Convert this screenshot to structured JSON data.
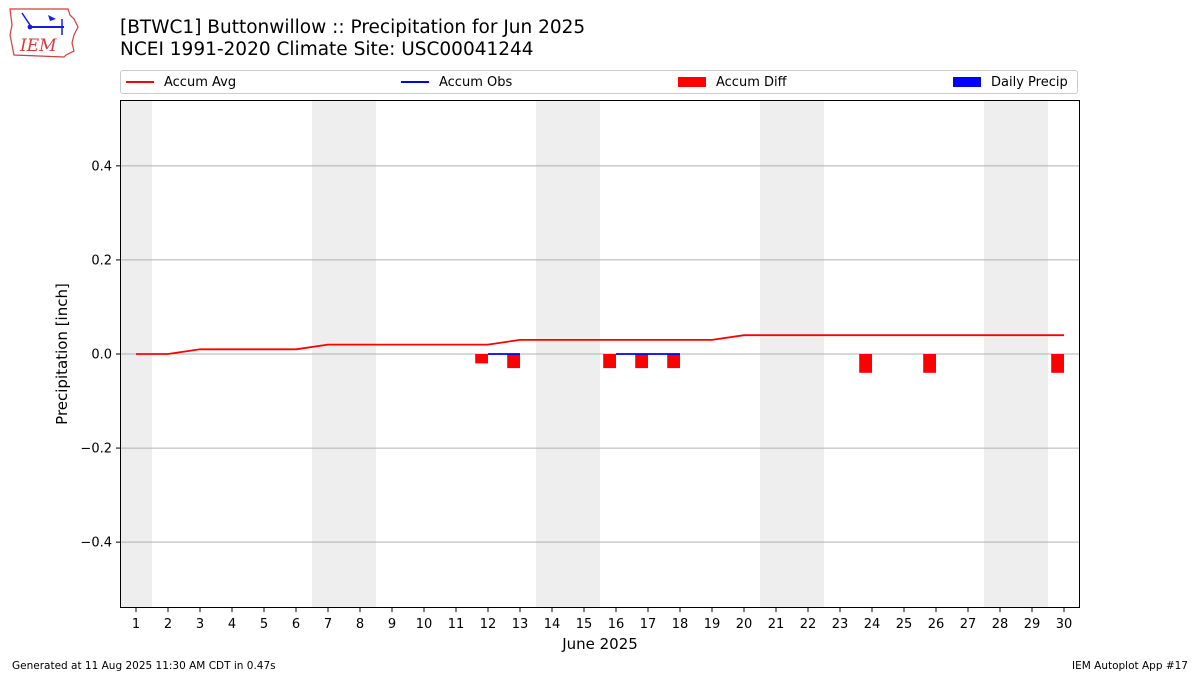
{
  "header": {
    "title_line1": "[BTWC1] Buttonwillow :: Precipitation for Jun 2025",
    "title_line2": "NCEI 1991-2020 Climate Site: USC00041244",
    "logo_text": "IEM"
  },
  "footer": {
    "generated": "Generated at 11 Aug 2025 11:30 AM CDT in 0.47s",
    "app": "IEM Autoplot App #17"
  },
  "chart_data": {
    "type": "line",
    "xlabel": "June 2025",
    "ylabel": "Precipitation [inch]",
    "xlim": [
      0.5,
      30.5
    ],
    "ylim": [
      -0.54,
      0.54
    ],
    "yticks": [
      -0.4,
      -0.2,
      0.0,
      0.2,
      0.4
    ],
    "ytick_labels": [
      "−0.4",
      "−0.2",
      "0.0",
      "0.2",
      "0.4"
    ],
    "x": [
      1,
      2,
      3,
      4,
      5,
      6,
      7,
      8,
      9,
      10,
      11,
      12,
      13,
      14,
      15,
      16,
      17,
      18,
      19,
      20,
      21,
      22,
      23,
      24,
      25,
      26,
      27,
      28,
      29,
      30
    ],
    "x_tick_labels": [
      "1",
      "2",
      "3",
      "4",
      "5",
      "6",
      "7",
      "8",
      "9",
      "10",
      "11",
      "12",
      "13",
      "14",
      "15",
      "16",
      "17",
      "18",
      "19",
      "20",
      "21",
      "22",
      "23",
      "24",
      "25",
      "26",
      "27",
      "28",
      "29",
      "30"
    ],
    "grid": "y-major",
    "legend_placement": "top, above plot",
    "weekend_shading": [
      [
        0.5,
        1.5
      ],
      [
        6.5,
        8.5
      ],
      [
        13.5,
        15.5
      ],
      [
        20.5,
        22.5
      ],
      [
        27.5,
        29.5
      ]
    ],
    "series": [
      {
        "name": "Accum Avg",
        "kind": "line",
        "color": "#ff0000",
        "values": [
          0,
          0,
          0.01,
          0.01,
          0.01,
          0.01,
          0.02,
          0.02,
          0.02,
          0.02,
          0.02,
          0.02,
          0.03,
          0.03,
          0.03,
          0.03,
          0.03,
          0.03,
          0.03,
          0.04,
          0.04,
          0.04,
          0.04,
          0.04,
          0.04,
          0.04,
          0.04,
          0.04,
          0.04,
          0.04
        ]
      },
      {
        "name": "Accum Obs",
        "kind": "line",
        "color": "#0000ff",
        "segments": [
          {
            "x": [
              12,
              13
            ],
            "values": [
              0,
              0
            ]
          },
          {
            "x": [
              16,
              17,
              18
            ],
            "values": [
              0,
              0,
              0
            ]
          }
        ]
      },
      {
        "name": "Accum Diff",
        "kind": "bar",
        "color": "#ff0000",
        "bars": [
          {
            "x": 12,
            "value": -0.02
          },
          {
            "x": 13,
            "value": -0.03
          },
          {
            "x": 16,
            "value": -0.03
          },
          {
            "x": 17,
            "value": -0.03
          },
          {
            "x": 18,
            "value": -0.03
          },
          {
            "x": 24,
            "value": -0.04
          },
          {
            "x": 26,
            "value": -0.04
          },
          {
            "x": 30,
            "value": -0.04
          }
        ]
      },
      {
        "name": "Daily Precip",
        "kind": "bar",
        "color": "#0000ff",
        "bars": []
      }
    ]
  }
}
